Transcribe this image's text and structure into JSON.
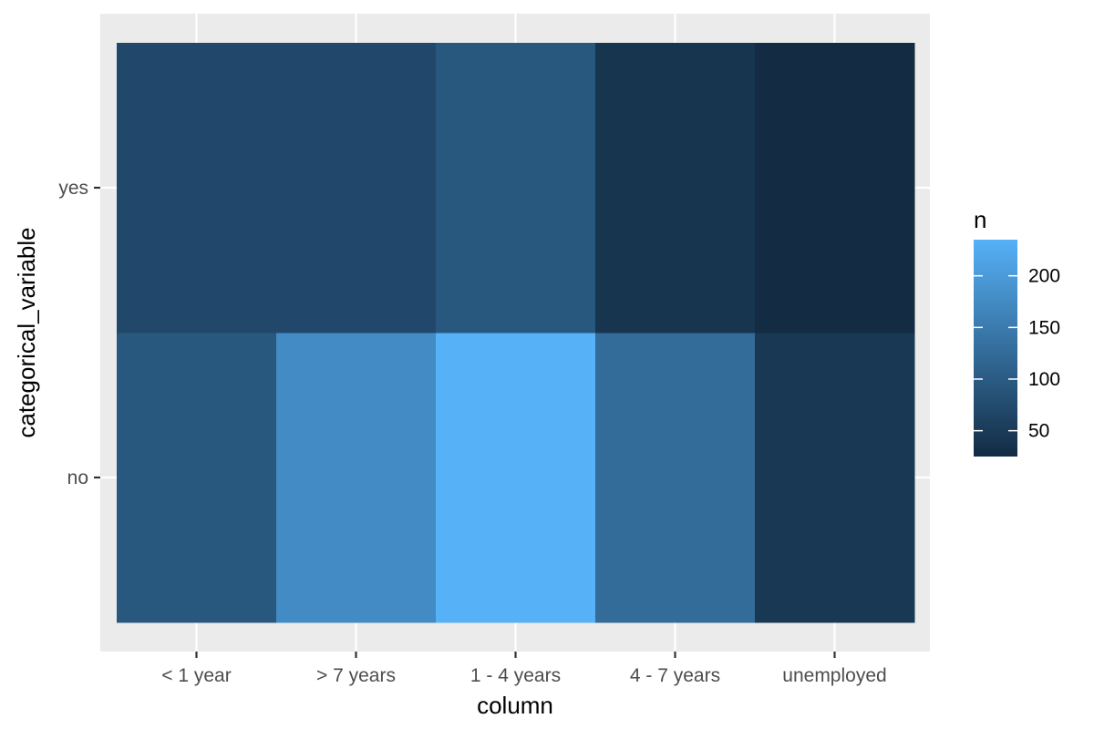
{
  "chart_data": {
    "type": "heatmap",
    "title": "",
    "xlabel": "column",
    "ylabel": "categorical_variable",
    "x_categories": [
      "< 1 year",
      "> 7 years",
      "1 - 4 years",
      "4 - 7 years",
      "unemployed"
    ],
    "y_categories": [
      "no",
      "yes"
    ],
    "values": [
      [
        95,
        175,
        235,
        125,
        45
      ],
      [
        70,
        70,
        95,
        40,
        25
      ]
    ],
    "color_scale": {
      "name": "n",
      "low_color": "#132B43",
      "high_color": "#56B1F7",
      "min": 25,
      "max": 235,
      "ticks": [
        50,
        100,
        150,
        200
      ]
    },
    "legend_position": "right",
    "grid": true,
    "panel_background": "#EBEBEB",
    "grid_color": "#FFFFFF"
  }
}
